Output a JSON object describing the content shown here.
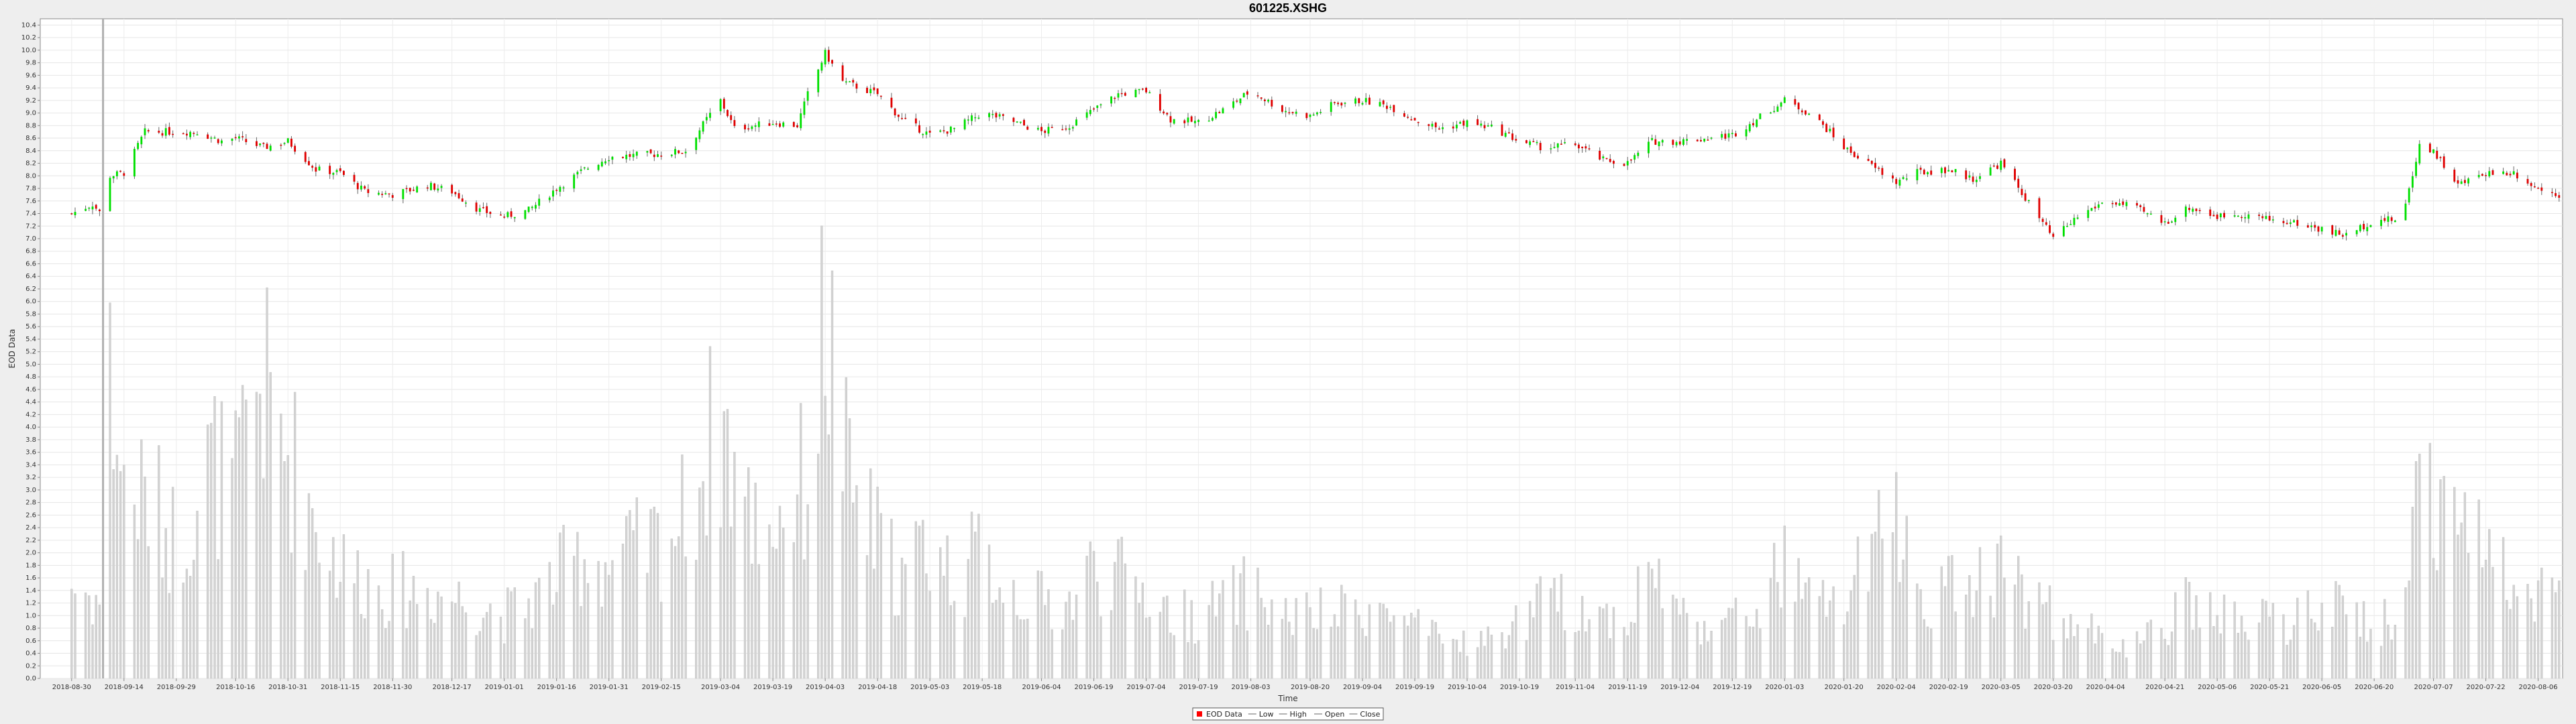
{
  "chart_data": {
    "type": "candlestick+bar",
    "title": "601225.XSHG",
    "xlabel": "Time",
    "ylabel": "EOD Data",
    "ylim": [
      0,
      10.5
    ],
    "y_ticks": [
      "0.0",
      "0.2",
      "0.4",
      "0.6",
      "0.8",
      "1.0",
      "1.2",
      "1.4",
      "1.6",
      "1.8",
      "2.0",
      "2.2",
      "2.4",
      "2.6",
      "2.8",
      "3.0",
      "3.2",
      "3.4",
      "3.6",
      "3.8",
      "4.0",
      "4.2",
      "4.4",
      "4.6",
      "4.8",
      "5.0",
      "5.2",
      "5.4",
      "5.6",
      "5.8",
      "6.0",
      "6.2",
      "6.4",
      "6.6",
      "6.8",
      "7.0",
      "7.2",
      "7.4",
      "7.6",
      "7.8",
      "8.0",
      "8.2",
      "8.4",
      "8.6",
      "8.8",
      "9.0",
      "9.2",
      "9.4",
      "9.6",
      "9.8",
      "10.0",
      "10.2",
      "10.4"
    ],
    "x_ticks": [
      "2018-08-30",
      "2018-09-14",
      "2018-09-29",
      "2018-10-16",
      "2018-10-31",
      "2018-11-15",
      "2018-11-30",
      "2018-12-17",
      "2019-01-01",
      "2019-01-16",
      "2019-01-31",
      "2019-02-15",
      "2019-03-04",
      "2019-03-19",
      "2019-04-03",
      "2019-04-18",
      "2019-05-03",
      "2019-05-18",
      "2019-06-04",
      "2019-06-19",
      "2019-07-04",
      "2019-07-19",
      "2019-08-03",
      "2019-08-20",
      "2019-09-04",
      "2019-09-19",
      "2019-10-04",
      "2019-10-19",
      "2019-11-04",
      "2019-11-19",
      "2019-12-04",
      "2019-12-19",
      "2020-01-03",
      "2020-01-20",
      "2020-02-04",
      "2020-02-19",
      "2020-03-05",
      "2020-03-20",
      "2020-04-04",
      "2020-04-21",
      "2020-05-06",
      "2020-05-21",
      "2020-06-05",
      "2020-06-20",
      "2020-07-07",
      "2020-07-22",
      "2020-08-06"
    ],
    "grid": true,
    "crosshair_x": "2018-09-08",
    "legend": {
      "placement": "bottom",
      "items": [
        {
          "label": "EOD Data",
          "color": "#ff0000"
        },
        {
          "label": "Low",
          "color": "#999999"
        },
        {
          "label": "High",
          "color": "#999999"
        },
        {
          "label": "Open",
          "color": "#999999"
        },
        {
          "label": "Close",
          "color": "#999999"
        }
      ]
    },
    "colors": {
      "up": "#00e000",
      "down": "#e00000",
      "volume": "#d3d3d3",
      "crosshair": "#b0b0b0"
    },
    "price_close_anchors": [
      [
        "2018-08-30",
        7.4
      ],
      [
        "2018-09-05",
        7.55
      ],
      [
        "2018-09-08",
        7.35
      ],
      [
        "2018-09-10",
        8.0
      ],
      [
        "2018-09-14",
        8.05
      ],
      [
        "2018-09-20",
        8.7
      ],
      [
        "2018-09-29",
        8.7
      ],
      [
        "2018-10-05",
        8.7
      ],
      [
        "2018-10-12",
        8.55
      ],
      [
        "2018-10-16",
        8.6
      ],
      [
        "2018-10-24",
        8.45
      ],
      [
        "2018-10-31",
        8.55
      ],
      [
        "2018-11-08",
        8.1
      ],
      [
        "2018-11-15",
        8.05
      ],
      [
        "2018-11-22",
        7.75
      ],
      [
        "2018-11-30",
        7.7
      ],
      [
        "2018-12-10",
        7.85
      ],
      [
        "2018-12-17",
        7.75
      ],
      [
        "2018-12-25",
        7.45
      ],
      [
        "2019-01-01",
        7.35
      ],
      [
        "2019-01-08",
        7.45
      ],
      [
        "2019-01-16",
        7.8
      ],
      [
        "2019-01-24",
        8.1
      ],
      [
        "2019-01-31",
        8.3
      ],
      [
        "2019-02-15",
        8.35
      ],
      [
        "2019-02-22",
        8.4
      ],
      [
        "2019-02-28",
        8.9
      ],
      [
        "2019-03-04",
        9.2
      ],
      [
        "2019-03-08",
        8.75
      ],
      [
        "2019-03-19",
        8.85
      ],
      [
        "2019-03-26",
        8.8
      ],
      [
        "2019-03-29",
        9.3
      ],
      [
        "2019-04-03",
        9.95
      ],
      [
        "2019-04-08",
        9.5
      ],
      [
        "2019-04-18",
        9.3
      ],
      [
        "2019-04-25",
        8.9
      ],
      [
        "2019-05-03",
        8.65
      ],
      [
        "2019-05-10",
        8.75
      ],
      [
        "2019-05-18",
        9.0
      ],
      [
        "2019-05-25",
        8.9
      ],
      [
        "2019-06-04",
        8.7
      ],
      [
        "2019-06-12",
        8.8
      ],
      [
        "2019-06-19",
        9.05
      ],
      [
        "2019-06-26",
        9.3
      ],
      [
        "2019-07-04",
        9.35
      ],
      [
        "2019-07-11",
        8.9
      ],
      [
        "2019-07-19",
        8.85
      ],
      [
        "2019-07-26",
        9.05
      ],
      [
        "2019-08-03",
        9.35
      ],
      [
        "2019-08-12",
        9.05
      ],
      [
        "2019-08-20",
        8.95
      ],
      [
        "2019-08-27",
        9.15
      ],
      [
        "2019-09-04",
        9.2
      ],
      [
        "2019-09-12",
        9.1
      ],
      [
        "2019-09-19",
        8.9
      ],
      [
        "2019-09-26",
        8.75
      ],
      [
        "2019-10-04",
        8.85
      ],
      [
        "2019-10-12",
        8.75
      ],
      [
        "2019-10-19",
        8.55
      ],
      [
        "2019-10-26",
        8.45
      ],
      [
        "2019-11-04",
        8.5
      ],
      [
        "2019-11-12",
        8.25
      ],
      [
        "2019-11-19",
        8.2
      ],
      [
        "2019-11-26",
        8.55
      ],
      [
        "2019-12-04",
        8.55
      ],
      [
        "2019-12-12",
        8.6
      ],
      [
        "2019-12-19",
        8.65
      ],
      [
        "2019-12-26",
        8.9
      ],
      [
        "2020-01-03",
        9.2
      ],
      [
        "2020-01-10",
        9.0
      ],
      [
        "2020-01-15",
        8.75
      ],
      [
        "2020-01-20",
        8.45
      ],
      [
        "2020-02-04",
        7.9
      ],
      [
        "2020-02-10",
        8.05
      ],
      [
        "2020-02-19",
        8.1
      ],
      [
        "2020-02-26",
        7.95
      ],
      [
        "2020-03-05",
        8.2
      ],
      [
        "2020-03-12",
        7.65
      ],
      [
        "2020-03-20",
        7.0
      ],
      [
        "2020-03-27",
        7.35
      ],
      [
        "2020-04-04",
        7.6
      ],
      [
        "2020-04-12",
        7.5
      ],
      [
        "2020-04-21",
        7.25
      ],
      [
        "2020-04-28",
        7.5
      ],
      [
        "2020-05-06",
        7.35
      ],
      [
        "2020-05-13",
        7.4
      ],
      [
        "2020-05-21",
        7.3
      ],
      [
        "2020-05-28",
        7.25
      ],
      [
        "2020-06-05",
        7.15
      ],
      [
        "2020-06-12",
        7.05
      ],
      [
        "2020-06-20",
        7.3
      ],
      [
        "2020-06-28",
        7.3
      ],
      [
        "2020-07-03",
        8.5
      ],
      [
        "2020-07-07",
        8.4
      ],
      [
        "2020-07-14",
        7.85
      ],
      [
        "2020-07-22",
        8.05
      ],
      [
        "2020-07-30",
        8.05
      ],
      [
        "2020-08-06",
        7.8
      ],
      [
        "2020-08-12",
        7.7
      ]
    ],
    "volume_anchors": [
      [
        "2018-08-30",
        1.5
      ],
      [
        "2018-09-08",
        1.2
      ],
      [
        "2018-09-10",
        4.8
      ],
      [
        "2018-09-14",
        3.0
      ],
      [
        "2018-09-22",
        2.8
      ],
      [
        "2018-09-29",
        2.2
      ],
      [
        "2018-10-09",
        3.4
      ],
      [
        "2018-10-16",
        3.0
      ],
      [
        "2018-10-22",
        4.8
      ],
      [
        "2018-10-31",
        3.6
      ],
      [
        "2018-11-08",
        2.6
      ],
      [
        "2018-11-15",
        1.8
      ],
      [
        "2018-11-22",
        1.6
      ],
      [
        "2018-11-30",
        1.4
      ],
      [
        "2018-12-10",
        1.4
      ],
      [
        "2018-12-17",
        1.3
      ],
      [
        "2018-12-25",
        1.2
      ],
      [
        "2019-01-01",
        1.0
      ],
      [
        "2019-01-08",
        1.2
      ],
      [
        "2019-01-16",
        1.6
      ],
      [
        "2019-01-24",
        2.0
      ],
      [
        "2019-01-31",
        1.8
      ],
      [
        "2019-02-15",
        2.2
      ],
      [
        "2019-02-22",
        2.6
      ],
      [
        "2019-03-04",
        4.2
      ],
      [
        "2019-03-12",
        2.6
      ],
      [
        "2019-03-19",
        2.5
      ],
      [
        "2019-03-29",
        3.2
      ],
      [
        "2019-04-03",
        5.8
      ],
      [
        "2019-04-10",
        3.0
      ],
      [
        "2019-04-18",
        2.2
      ],
      [
        "2019-04-25",
        1.6
      ],
      [
        "2019-05-03",
        2.2
      ],
      [
        "2019-05-10",
        1.6
      ],
      [
        "2019-05-18",
        2.0
      ],
      [
        "2019-05-25",
        1.5
      ],
      [
        "2019-06-04",
        1.2
      ],
      [
        "2019-06-12",
        1.2
      ],
      [
        "2019-06-19",
        1.8
      ],
      [
        "2019-06-26",
        1.6
      ],
      [
        "2019-07-04",
        1.4
      ],
      [
        "2019-07-12",
        1.0
      ],
      [
        "2019-07-19",
        1.0
      ],
      [
        "2019-07-26",
        1.2
      ],
      [
        "2019-08-03",
        1.4
      ],
      [
        "2019-08-12",
        1.0
      ],
      [
        "2019-08-20",
        1.0
      ],
      [
        "2019-08-27",
        1.0
      ],
      [
        "2019-09-04",
        1.2
      ],
      [
        "2019-09-12",
        1.0
      ],
      [
        "2019-09-19",
        0.8
      ],
      [
        "2019-09-26",
        0.6
      ],
      [
        "2019-10-10",
        0.6
      ],
      [
        "2019-10-19",
        0.9
      ],
      [
        "2019-10-26",
        1.2
      ],
      [
        "2019-11-04",
        1.2
      ],
      [
        "2019-11-12",
        1.0
      ],
      [
        "2019-11-19",
        1.0
      ],
      [
        "2019-11-26",
        1.8
      ],
      [
        "2019-12-04",
        1.0
      ],
      [
        "2019-12-12",
        0.9
      ],
      [
        "2019-12-19",
        0.9
      ],
      [
        "2019-12-26",
        1.1
      ],
      [
        "2020-01-03",
        1.8
      ],
      [
        "2020-01-10",
        1.2
      ],
      [
        "2020-01-20",
        1.2
      ],
      [
        "2020-02-04",
        2.6
      ],
      [
        "2020-02-10",
        1.4
      ],
      [
        "2020-02-19",
        1.4
      ],
      [
        "2020-02-26",
        1.6
      ],
      [
        "2020-03-05",
        1.8
      ],
      [
        "2020-03-12",
        1.4
      ],
      [
        "2020-03-20",
        1.0
      ],
      [
        "2020-03-27",
        0.8
      ],
      [
        "2020-04-04",
        0.7
      ],
      [
        "2020-04-12",
        0.5
      ],
      [
        "2020-04-21",
        0.8
      ],
      [
        "2020-04-28",
        1.2
      ],
      [
        "2020-05-06",
        1.0
      ],
      [
        "2020-05-13",
        0.9
      ],
      [
        "2020-05-21",
        0.9
      ],
      [
        "2020-05-28",
        0.9
      ],
      [
        "2020-06-05",
        1.2
      ],
      [
        "2020-06-12",
        1.0
      ],
      [
        "2020-06-20",
        0.9
      ],
      [
        "2020-06-28",
        0.9
      ],
      [
        "2020-07-03",
        3.4
      ],
      [
        "2020-07-07",
        3.2
      ],
      [
        "2020-07-14",
        2.4
      ],
      [
        "2020-07-22",
        2.0
      ],
      [
        "2020-07-30",
        1.8
      ],
      [
        "2020-08-06",
        1.5
      ],
      [
        "2020-08-12",
        1.3
      ]
    ]
  }
}
